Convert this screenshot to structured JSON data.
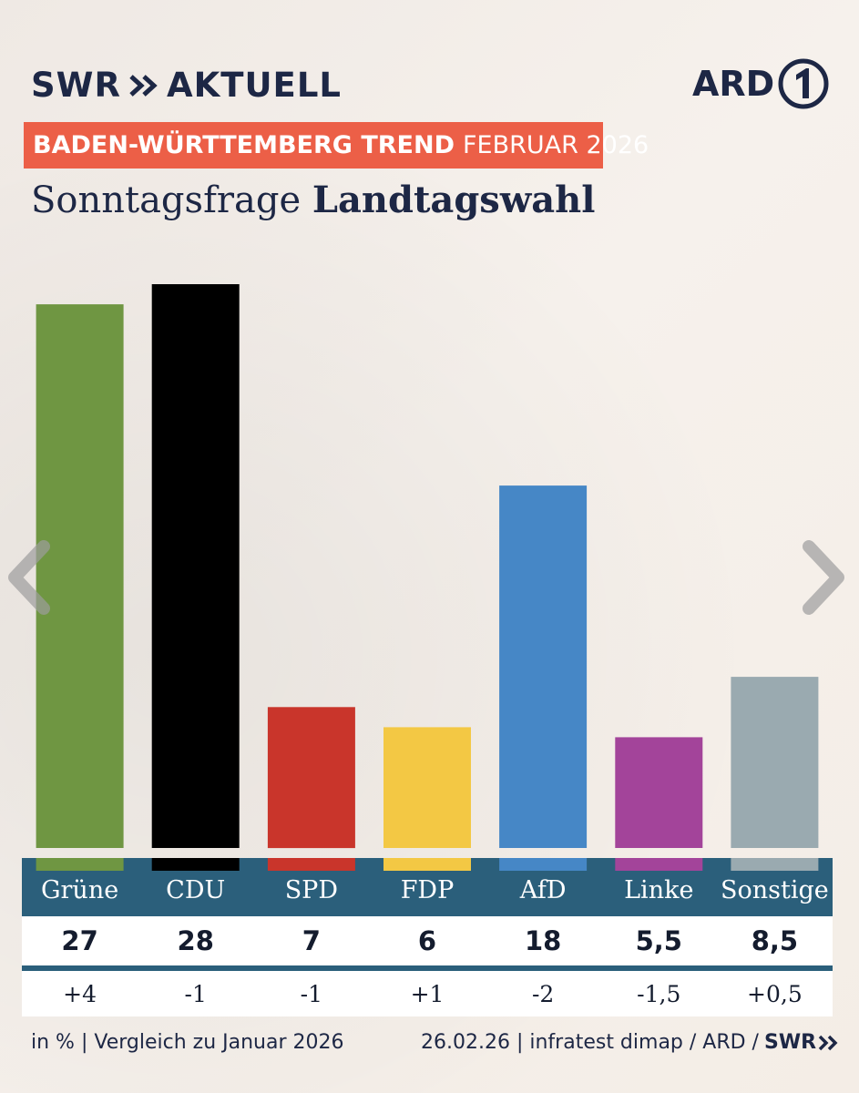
{
  "header": {
    "brand_left": "SWR",
    "brand_right": "AKTUELL",
    "network": "ARD",
    "trend_bold": "BADEN-WÜRTTEMBERG TREND",
    "trend_rest": "FEBRUAR 2026",
    "title_plain": "Sonntagsfrage",
    "title_bold": "Landtagswahl"
  },
  "colors": {
    "accent": "#ec5f47",
    "table_header": "#2b5f7b",
    "text": "#1d2745"
  },
  "chart_data": {
    "type": "bar",
    "title": "Sonntagsfrage Landtagswahl",
    "unit": "in %",
    "categories": [
      "Grüne",
      "CDU",
      "SPD",
      "FDP",
      "AfD",
      "Linke",
      "Sonstige"
    ],
    "values": [
      27,
      28,
      7,
      6,
      18,
      5.5,
      8.5
    ],
    "value_labels": [
      "27",
      "28",
      "7",
      "6",
      "18",
      "5,5",
      "8,5"
    ],
    "changes": [
      "+4",
      "-1",
      "-1",
      "+1",
      "-2",
      "-1,5",
      "+0,5"
    ],
    "colors": [
      "#6f9642",
      "#000000",
      "#c9352b",
      "#f3c844",
      "#4687c6",
      "#a3449a",
      "#9aaab0"
    ],
    "ylim": [
      0,
      28
    ],
    "grid": false,
    "xlabel": "",
    "ylabel": ""
  },
  "footer": {
    "left": "in % | Vergleich zu Januar 2026",
    "right": "26.02.26 | infratest dimap / ARD /",
    "brand": "SWR"
  }
}
